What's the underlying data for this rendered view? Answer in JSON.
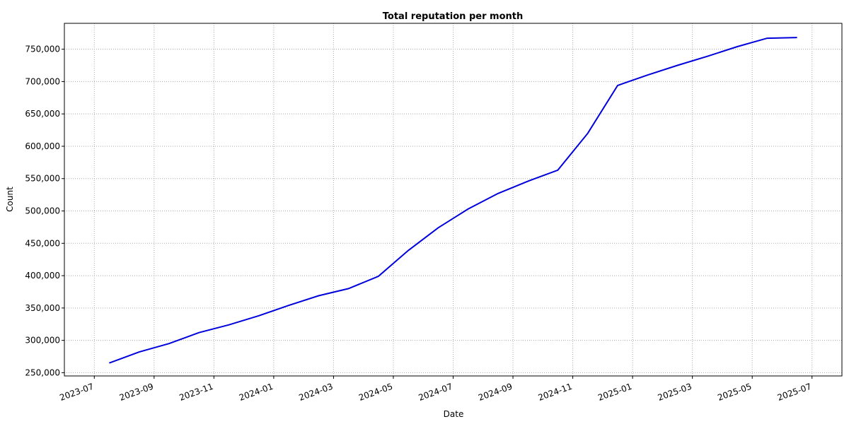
{
  "chart_data": {
    "type": "line",
    "title": "Total reputation per month",
    "x_label": "Date",
    "y_label": "Count",
    "x": [
      "2023-07",
      "2023-08",
      "2023-09",
      "2023-10",
      "2023-11",
      "2023-12",
      "2024-01",
      "2024-02",
      "2024-03",
      "2024-04",
      "2024-05",
      "2024-06",
      "2024-07",
      "2024-08",
      "2024-09",
      "2024-10",
      "2024-11",
      "2024-12",
      "2025-01",
      "2025-02",
      "2025-03",
      "2025-04",
      "2025-05",
      "2025-06"
    ],
    "series": [
      {
        "name": "Total reputation",
        "color": "#0000dd",
        "values": [
          265000,
          282000,
          295000,
          312000,
          324000,
          338000,
          354000,
          369000,
          380000,
          399000,
          439000,
          474000,
          503000,
          527000,
          546000,
          563000,
          620000,
          694000,
          710000,
          725000,
          739000,
          754000,
          767000,
          768000
        ]
      }
    ],
    "xlim": [
      "2023-06",
      "2025-08"
    ],
    "xticks": [
      "2023-07",
      "2023-09",
      "2023-11",
      "2024-01",
      "2024-03",
      "2024-05",
      "2024-07",
      "2024-09",
      "2024-11",
      "2025-01",
      "2025-03",
      "2025-05",
      "2025-07"
    ],
    "ylim": [
      245000,
      790000
    ],
    "yticks": [
      {
        "value": 250000,
        "label": "250,000"
      },
      {
        "value": 300000,
        "label": "300,000"
      },
      {
        "value": 350000,
        "label": "350,000"
      },
      {
        "value": 400000,
        "label": "400,000"
      },
      {
        "value": 450000,
        "label": "450,000"
      },
      {
        "value": 500000,
        "label": "500,000"
      },
      {
        "value": 550000,
        "label": "550,000"
      },
      {
        "value": 600000,
        "label": "600,000"
      },
      {
        "value": 650000,
        "label": "650,000"
      },
      {
        "value": 700000,
        "label": "700,000"
      },
      {
        "value": 750000,
        "label": "750,000"
      }
    ],
    "grid": true
  }
}
